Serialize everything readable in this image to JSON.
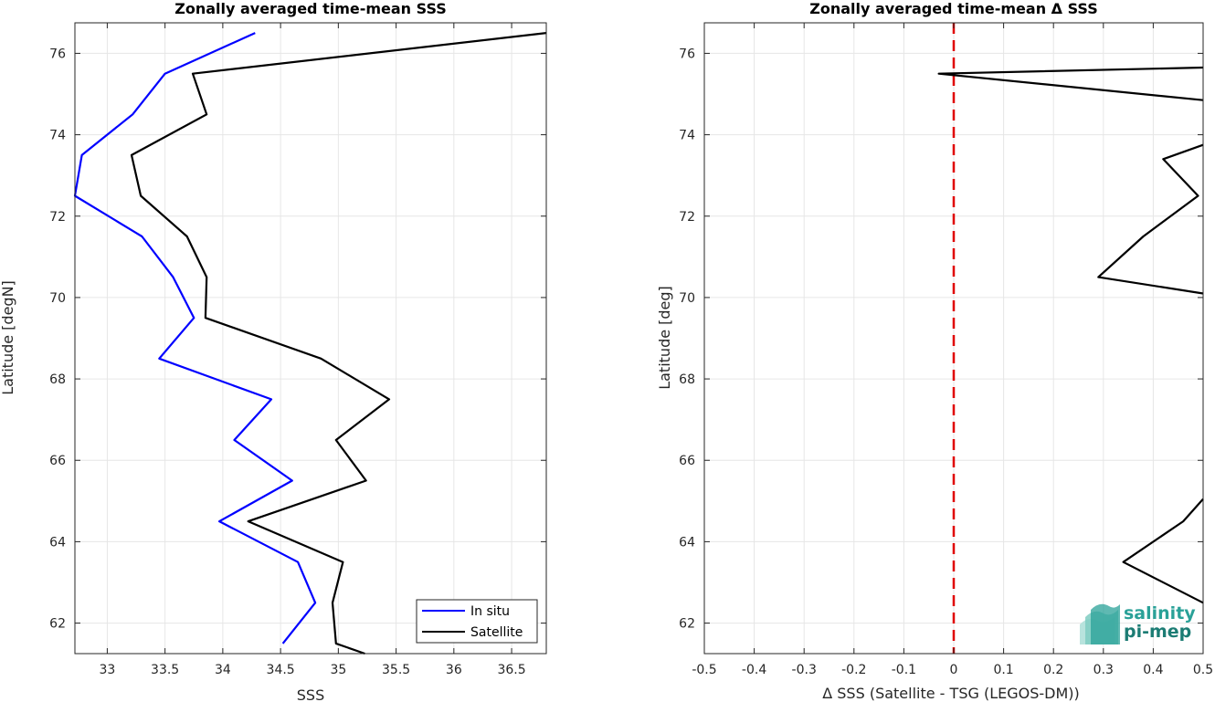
{
  "colors": {
    "in_situ": "#0000ff",
    "satellite": "#000000",
    "zero_line": "#e00000",
    "logo": "#2aa198"
  },
  "logo": {
    "line1": "salinity",
    "line2": "pi-mep"
  },
  "chart_data": [
    {
      "type": "line",
      "title": "Zonally averaged time-mean SSS",
      "xlabel": "SSS",
      "ylabel": "Latitude [degN]",
      "xlim": [
        32.72,
        36.8
      ],
      "ylim": [
        61.25,
        76.75
      ],
      "xticks": [
        33,
        33.5,
        34,
        34.5,
        35,
        35.5,
        36,
        36.5
      ],
      "yticks": [
        62,
        64,
        66,
        68,
        70,
        72,
        74,
        76
      ],
      "grid": true,
      "legend_position": "bottom-right",
      "series": [
        {
          "name": "In situ",
          "color": "#0000ff",
          "x": [
            34.52,
            34.8,
            34.65,
            33.97,
            34.6,
            34.1,
            34.42,
            33.45,
            33.75,
            33.57,
            33.3,
            32.72,
            32.78,
            33.22,
            33.5,
            34.28
          ],
          "y": [
            61.5,
            62.5,
            63.5,
            64.5,
            65.5,
            66.5,
            67.5,
            68.5,
            69.5,
            70.5,
            71.5,
            72.5,
            73.5,
            74.5,
            75.5,
            76.5
          ]
        },
        {
          "name": "Satellite",
          "color": "#000000",
          "x": [
            35.23,
            34.98,
            34.95,
            35.04,
            34.22,
            35.24,
            34.98,
            35.44,
            34.85,
            33.85,
            33.86,
            33.69,
            33.29,
            33.21,
            33.86,
            33.74,
            36.8
          ],
          "y": [
            61.25,
            61.5,
            62.5,
            63.5,
            64.5,
            65.5,
            66.5,
            67.5,
            68.5,
            69.5,
            70.5,
            71.5,
            72.5,
            73.5,
            74.5,
            75.5,
            76.5
          ]
        }
      ]
    },
    {
      "type": "line",
      "title": "Zonally averaged time-mean Δ SSS",
      "xlabel": "Δ SSS (Satellite - TSG (LEGOS-DM))",
      "ylabel": "Latitude [deg]",
      "xlim": [
        -0.5,
        0.5
      ],
      "ylim": [
        61.25,
        76.75
      ],
      "xticks": [
        -0.5,
        -0.4,
        -0.3,
        -0.2,
        -0.1,
        0,
        0.1,
        0.2,
        0.3,
        0.4,
        0.5
      ],
      "xtick_labels": [
        "-0.5",
        "-0.4",
        "-0.3",
        "-0.2",
        "-0.1",
        "0",
        "0.1",
        "0.2",
        "0.3",
        "0.4",
        "0.5"
      ],
      "yticks": [
        62,
        64,
        66,
        68,
        70,
        72,
        74,
        76
      ],
      "grid": true,
      "reference_line_x": 0,
      "series": [
        {
          "color": "#000000",
          "segments": [
            {
              "x": [
                0.5,
                0.34,
                0.46,
                0.5
              ],
              "y": [
                62.5,
                63.5,
                64.5,
                65.05
              ]
            },
            {
              "x": [
                0.5,
                0.29,
                0.38,
                0.49,
                0.42,
                0.5
              ],
              "y": [
                70.1,
                70.5,
                71.5,
                72.5,
                73.4,
                73.75
              ]
            },
            {
              "x": [
                0.5,
                -0.03,
                0.5
              ],
              "y": [
                74.85,
                75.5,
                75.65
              ]
            }
          ]
        }
      ]
    }
  ]
}
